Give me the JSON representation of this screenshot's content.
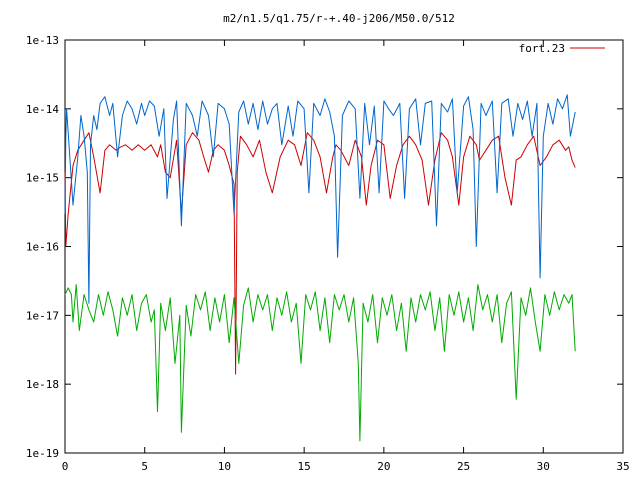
{
  "chart_data": {
    "type": "line",
    "title": "m2/n1.5/q1.75/r-+.40-j206/M50.0/512",
    "xlabel": "",
    "ylabel": "",
    "xlim": [
      0,
      35
    ],
    "ylim": [
      1e-19,
      1e-13
    ],
    "yscale": "log",
    "grid": false,
    "legend_position": "top-right",
    "x_ticks": [
      "0",
      "5",
      "10",
      "15",
      "20",
      "25",
      "30",
      "35"
    ],
    "x_tick_values": [
      0,
      5,
      10,
      15,
      20,
      25,
      30,
      35
    ],
    "y_ticks": [
      "1e-13",
      "1e-14",
      "1e-15",
      "1e-16",
      "1e-17",
      "1e-18",
      "1e-19"
    ],
    "y_tick_values": [
      1e-13,
      1e-14,
      1e-15,
      1e-16,
      1e-17,
      1e-18,
      1e-19
    ],
    "series": [
      {
        "name": "fort.23",
        "color": "#cc0000",
        "x": [
          0,
          0.05,
          0.2,
          0.5,
          0.8,
          1.2,
          1.5,
          1.8,
          2.2,
          2.5,
          2.8,
          3.2,
          3.5,
          3.8,
          4.2,
          4.6,
          5.0,
          5.4,
          5.8,
          6.0,
          6.3,
          6.6,
          7.0,
          7.3,
          7.6,
          8.0,
          8.4,
          8.7,
          9.0,
          9.3,
          9.6,
          10.0,
          10.3,
          10.6,
          10.7,
          10.8,
          11.0,
          11.4,
          11.8,
          12.2,
          12.6,
          13.0,
          13.5,
          14.0,
          14.4,
          14.8,
          15.2,
          15.6,
          16.0,
          16.4,
          16.8,
          17.0,
          17.3,
          17.8,
          18.2,
          18.6,
          18.9,
          19.2,
          19.6,
          20.0,
          20.4,
          20.8,
          21.2,
          21.6,
          22.0,
          22.4,
          22.8,
          23.2,
          23.6,
          24.0,
          24.3,
          24.7,
          25.0,
          25.4,
          25.8,
          26.0,
          26.4,
          26.8,
          27.2,
          27.6,
          28.0,
          28.3,
          28.6,
          29.0,
          29.4,
          29.8,
          30.2,
          30.6,
          31.0,
          31.4,
          31.6,
          31.8,
          32.0
        ],
        "y": [
          1.2e-15,
          1e-16,
          3e-16,
          1.5e-15,
          2.5e-15,
          3.5e-15,
          4.5e-15,
          2e-15,
          6e-16,
          2.5e-15,
          3e-15,
          2.5e-15,
          2.8e-15,
          3e-15,
          2.5e-15,
          3e-15,
          2.5e-15,
          3e-15,
          2e-15,
          3e-15,
          1.2e-15,
          1e-15,
          3.5e-15,
          3e-16,
          3e-15,
          4.5e-15,
          3.5e-15,
          2e-15,
          1.2e-15,
          2.5e-15,
          3e-15,
          2.5e-15,
          1.5e-15,
          8e-16,
          1.4e-18,
          1.2e-15,
          4e-15,
          3e-15,
          2e-15,
          3.5e-15,
          1.2e-15,
          6e-16,
          2e-15,
          3.5e-15,
          3e-15,
          1.5e-15,
          4.5e-15,
          3.5e-15,
          2e-15,
          6e-16,
          2e-15,
          3e-15,
          2.5e-15,
          1.5e-15,
          3.5e-15,
          2e-15,
          4e-16,
          1.5e-15,
          3.5e-15,
          3e-15,
          5e-16,
          1.5e-15,
          3e-15,
          4e-15,
          3e-15,
          1.8e-15,
          4e-16,
          1.8e-15,
          4.5e-15,
          3.5e-15,
          2e-15,
          4e-16,
          2e-15,
          4e-15,
          3e-15,
          1.8e-15,
          2.5e-15,
          3.5e-15,
          4e-15,
          1e-15,
          4e-16,
          1.8e-15,
          2e-15,
          3e-15,
          4e-15,
          1.5e-15,
          2e-15,
          3e-15,
          3.5e-15,
          2.5e-15,
          2.8e-15,
          1.8e-15,
          1.4e-15
        ]
      },
      {
        "color": "#0066cc",
        "x": [
          0,
          0.05,
          0.1,
          0.3,
          0.5,
          0.8,
          1.0,
          1.2,
          1.4,
          1.5,
          1.6,
          1.8,
          2.0,
          2.2,
          2.5,
          2.8,
          3.0,
          3.3,
          3.6,
          3.9,
          4.2,
          4.5,
          4.8,
          5.0,
          5.3,
          5.6,
          5.9,
          6.2,
          6.4,
          6.8,
          7.0,
          7.3,
          7.6,
          8.0,
          8.3,
          8.6,
          9.0,
          9.3,
          9.6,
          10.0,
          10.3,
          10.6,
          10.9,
          11.2,
          11.5,
          11.8,
          12.1,
          12.4,
          12.7,
          13.0,
          13.3,
          13.6,
          14.0,
          14.3,
          14.6,
          15.0,
          15.3,
          15.6,
          16.0,
          16.3,
          16.6,
          16.9,
          17.1,
          17.4,
          17.8,
          18.2,
          18.5,
          18.8,
          19.1,
          19.4,
          19.7,
          20.0,
          20.3,
          20.6,
          21.0,
          21.3,
          21.6,
          22.0,
          22.3,
          22.6,
          23.0,
          23.3,
          23.6,
          24.0,
          24.3,
          24.6,
          25.0,
          25.3,
          25.6,
          25.8,
          26.1,
          26.4,
          26.8,
          27.1,
          27.4,
          27.8,
          28.1,
          28.4,
          28.7,
          29.0,
          29.3,
          29.6,
          29.8,
          30.0,
          30.3,
          30.6,
          30.9,
          31.2,
          31.5,
          31.7,
          32.0
        ],
        "y": [
          3e-16,
          4e-15,
          1e-14,
          2e-15,
          4e-16,
          2e-15,
          8e-15,
          4e-15,
          1.2e-15,
          1.5e-17,
          3e-15,
          8e-15,
          5e-15,
          1.2e-14,
          1.5e-14,
          8e-15,
          1.2e-14,
          2e-15,
          8e-15,
          1.3e-14,
          1e-14,
          6e-15,
          1.2e-14,
          8e-15,
          1.3e-14,
          1.1e-14,
          4e-15,
          1e-14,
          5e-16,
          7e-15,
          1.3e-14,
          2e-16,
          1.2e-14,
          8e-15,
          4e-15,
          1.3e-14,
          8e-15,
          2e-15,
          1.2e-14,
          1e-14,
          6e-15,
          3e-16,
          9e-15,
          1.3e-14,
          6e-15,
          1.2e-14,
          5e-15,
          1.3e-14,
          6e-15,
          1e-14,
          1.2e-14,
          3e-15,
          1.1e-14,
          4e-15,
          1.3e-14,
          1e-14,
          6e-16,
          1.2e-14,
          8e-15,
          1.4e-14,
          9e-15,
          4e-15,
          7e-17,
          8e-15,
          1.3e-14,
          1e-14,
          5e-16,
          1.2e-14,
          3e-15,
          1.1e-14,
          6e-16,
          1.3e-14,
          1e-14,
          8e-15,
          1.2e-14,
          5e-16,
          1e-14,
          1.4e-14,
          3e-15,
          1.2e-14,
          1.3e-14,
          2e-16,
          1.2e-14,
          9e-15,
          1.4e-14,
          6e-16,
          1.1e-14,
          1.5e-14,
          5e-15,
          1e-16,
          1.2e-14,
          8e-15,
          1.3e-14,
          6e-16,
          1.2e-14,
          1.4e-14,
          4e-15,
          1.2e-14,
          7e-15,
          1.3e-14,
          4e-15,
          1.2e-14,
          3.5e-17,
          4e-15,
          1.2e-14,
          6e-15,
          1.4e-14,
          1e-14,
          1.6e-14,
          4e-15,
          9e-15
        ]
      },
      {
        "color": "#00aa00",
        "x": [
          0,
          0.2,
          0.4,
          0.5,
          0.7,
          0.9,
          1.2,
          1.5,
          1.8,
          2.1,
          2.4,
          2.7,
          3.0,
          3.3,
          3.6,
          3.9,
          4.2,
          4.5,
          4.8,
          5.1,
          5.4,
          5.6,
          5.8,
          6.0,
          6.3,
          6.6,
          6.9,
          7.2,
          7.3,
          7.6,
          7.9,
          8.2,
          8.5,
          8.8,
          9.1,
          9.4,
          9.7,
          10.0,
          10.3,
          10.6,
          10.9,
          11.2,
          11.5,
          11.8,
          12.1,
          12.4,
          12.7,
          13.0,
          13.3,
          13.6,
          13.9,
          14.2,
          14.5,
          14.8,
          15.1,
          15.4,
          15.7,
          16.0,
          16.3,
          16.6,
          16.9,
          17.2,
          17.5,
          17.8,
          18.1,
          18.4,
          18.5,
          18.7,
          19.0,
          19.3,
          19.6,
          19.9,
          20.2,
          20.5,
          20.8,
          21.1,
          21.4,
          21.7,
          22.0,
          22.3,
          22.6,
          22.9,
          23.2,
          23.5,
          23.8,
          24.1,
          24.4,
          24.7,
          25.0,
          25.3,
          25.6,
          25.9,
          26.2,
          26.5,
          26.8,
          27.1,
          27.4,
          27.7,
          28.0,
          28.3,
          28.6,
          28.9,
          29.2,
          29.5,
          29.8,
          30.1,
          30.4,
          30.7,
          31.0,
          31.3,
          31.6,
          31.8,
          32.0
        ],
        "y": [
          2e-17,
          2.5e-17,
          2e-17,
          8e-18,
          2.8e-17,
          6e-18,
          2e-17,
          1.2e-17,
          8e-18,
          2e-17,
          1e-17,
          2.2e-17,
          1.2e-17,
          5e-18,
          1.8e-17,
          1e-17,
          2e-17,
          6e-18,
          1.5e-17,
          2e-17,
          8e-18,
          1.2e-17,
          4e-19,
          1.5e-17,
          6e-18,
          1.8e-17,
          2e-18,
          1e-17,
          2e-19,
          1.4e-17,
          5e-18,
          2e-17,
          1.2e-17,
          2.2e-17,
          6e-18,
          1.8e-17,
          8e-18,
          2e-17,
          4e-18,
          1.8e-17,
          2e-18,
          1.4e-17,
          2.5e-17,
          8e-18,
          2e-17,
          1.2e-17,
          2e-17,
          6e-18,
          1.8e-17,
          1e-17,
          2.2e-17,
          8e-18,
          1.5e-17,
          2e-18,
          2e-17,
          1.2e-17,
          2.2e-17,
          6e-18,
          1.8e-17,
          4e-18,
          2e-17,
          1.2e-17,
          2e-17,
          8e-18,
          1.8e-17,
          2e-18,
          1.5e-19,
          1.5e-17,
          8e-18,
          2e-17,
          4e-18,
          1.8e-17,
          1e-17,
          2e-17,
          6e-18,
          1.5e-17,
          3e-18,
          1.8e-17,
          8e-18,
          2e-17,
          1.2e-17,
          2.2e-17,
          6e-18,
          1.8e-17,
          3e-18,
          2e-17,
          1e-17,
          2.2e-17,
          8e-18,
          1.8e-17,
          6e-18,
          2.8e-17,
          1.2e-17,
          2e-17,
          8e-18,
          2e-17,
          4e-18,
          1.5e-17,
          2.2e-17,
          6e-19,
          1.8e-17,
          1e-17,
          2.5e-17,
          8e-18,
          3e-18,
          2e-17,
          1e-17,
          2.2e-17,
          1.2e-17,
          2e-17,
          1.5e-17,
          2e-17,
          3e-18
        ]
      }
    ]
  }
}
